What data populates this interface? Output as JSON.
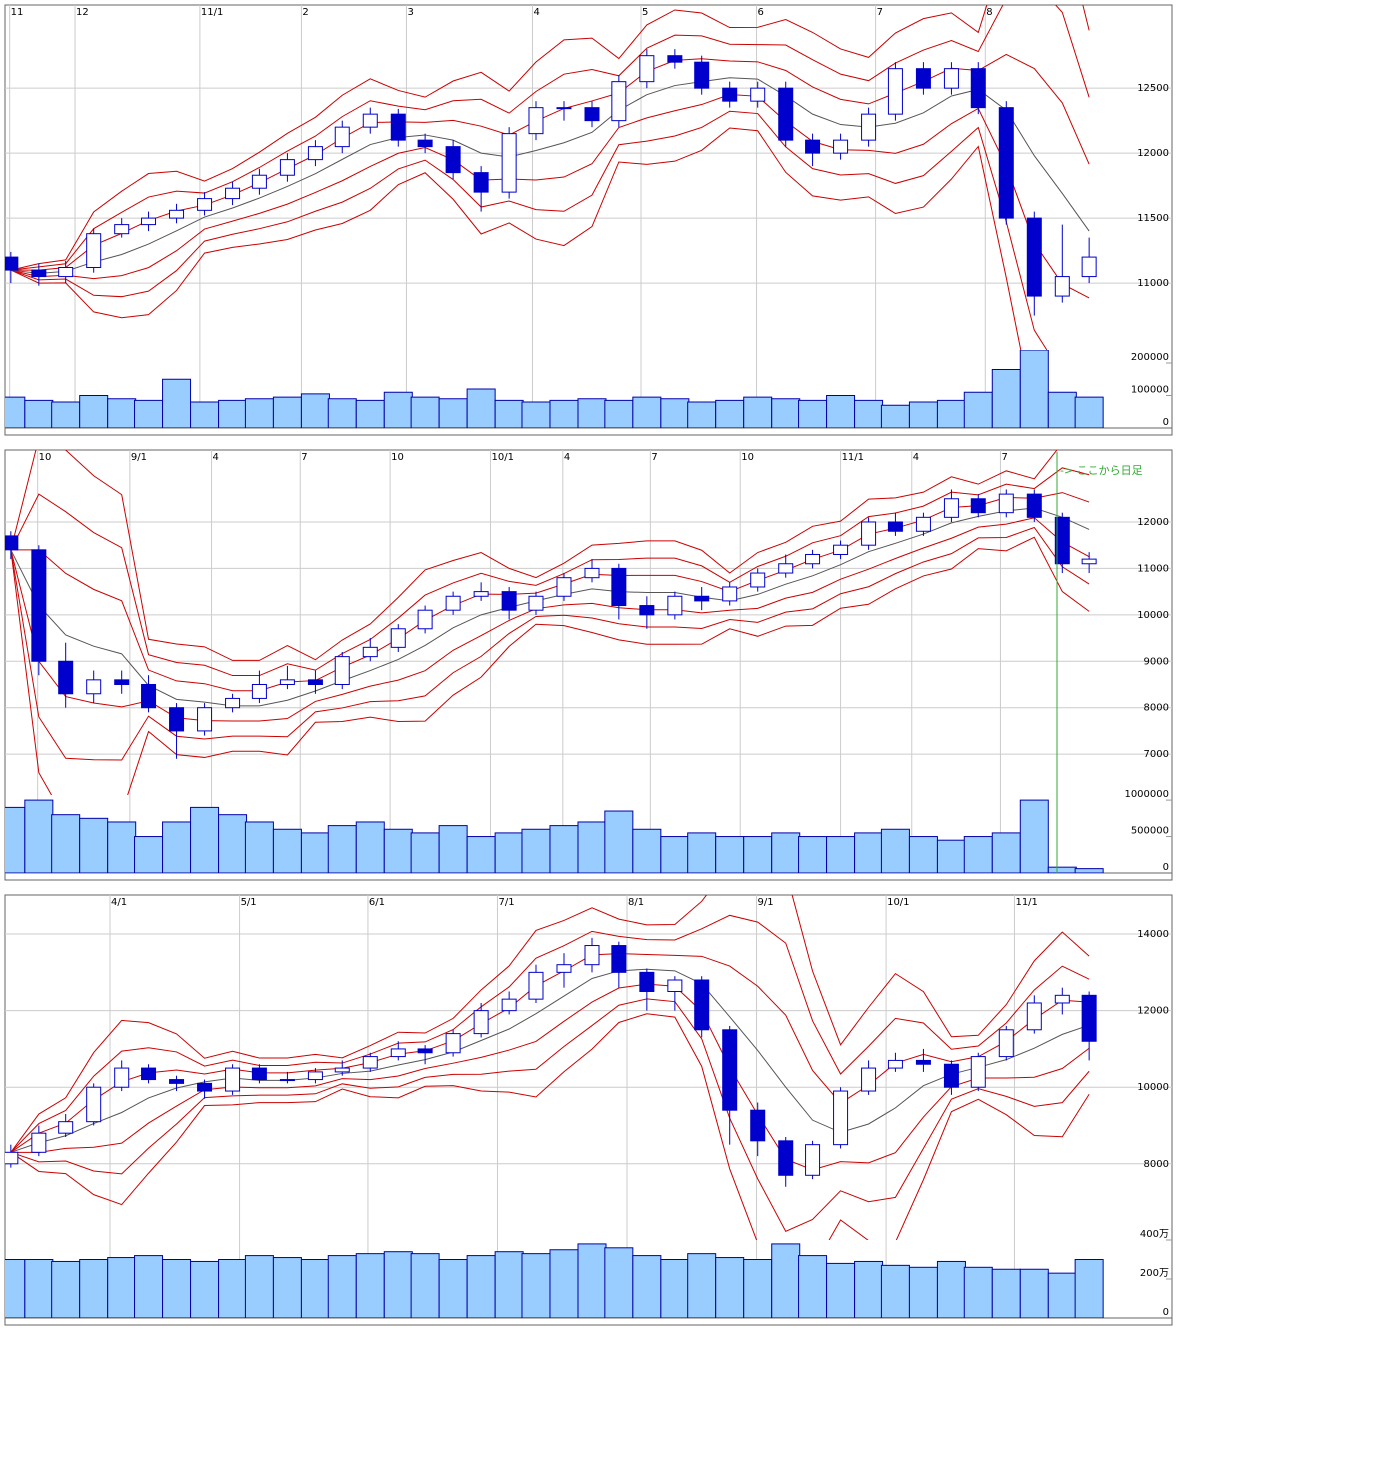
{
  "chart_data": [
    {
      "type": "candlestick",
      "x": [
        0.5,
        2.9,
        5.2,
        7.6,
        10.0,
        12.3,
        14.7,
        17.1,
        19.5,
        21.8,
        24.2,
        26.6,
        28.9,
        31.3,
        33.7,
        36.0,
        38.4,
        40.8,
        43.2,
        45.5,
        47.9,
        50.3,
        52.6,
        55.0,
        57.4,
        59.7,
        62.1,
        64.5,
        66.9,
        69.2,
        71.6,
        74.0,
        76.3,
        78.7,
        81.1,
        83.4,
        85.8,
        88.2,
        90.6,
        92.9
      ],
      "open": [
        11200,
        11100,
        11050,
        11120,
        11380,
        11450,
        11500,
        11560,
        11650,
        11730,
        11830,
        11950,
        12050,
        12200,
        12300,
        12100,
        12050,
        11850,
        11700,
        12150,
        12350,
        12350,
        12250,
        12550,
        12750,
        12700,
        12500,
        12400,
        12500,
        12100,
        12000,
        12100,
        12300,
        12650,
        12500,
        12650,
        12350,
        11500,
        10900,
        11050
      ],
      "high": [
        11240,
        11150,
        11170,
        11420,
        11500,
        11550,
        11610,
        11700,
        11780,
        11880,
        12000,
        12100,
        12250,
        12350,
        12340,
        12150,
        12100,
        11900,
        12200,
        12400,
        12400,
        12400,
        12600,
        12800,
        12800,
        12750,
        12550,
        12550,
        12550,
        12150,
        12150,
        12350,
        12700,
        12700,
        12700,
        12700,
        12400,
        11550,
        11450,
        11350
      ],
      "low": [
        11000,
        10980,
        11000,
        11080,
        11350,
        11400,
        11460,
        11520,
        11600,
        11680,
        11780,
        11900,
        12000,
        12150,
        12050,
        12000,
        11800,
        11550,
        11650,
        12100,
        12250,
        12200,
        12200,
        12500,
        12650,
        12450,
        12350,
        12350,
        12050,
        11900,
        11950,
        12050,
        12250,
        12450,
        12450,
        12300,
        11450,
        10750,
        10850,
        11000
      ],
      "close": [
        11100,
        11050,
        11120,
        11380,
        11450,
        11500,
        11560,
        11650,
        11730,
        11830,
        11950,
        12050,
        12200,
        12300,
        12100,
        12050,
        11850,
        11700,
        12150,
        12350,
        12350,
        12250,
        12550,
        12750,
        12700,
        12500,
        12400,
        12500,
        12100,
        12000,
        12100,
        12300,
        12650,
        12500,
        12650,
        12350,
        11500,
        10900,
        11050,
        11200
      ],
      "volume": [
        95000,
        85000,
        80000,
        100000,
        90000,
        85000,
        150000,
        80000,
        85000,
        90000,
        95000,
        105000,
        90000,
        85000,
        110000,
        95000,
        90000,
        120000,
        85000,
        80000,
        85000,
        90000,
        85000,
        95000,
        90000,
        80000,
        85000,
        95000,
        90000,
        85000,
        100000,
        85000,
        70000,
        80000,
        85000,
        110000,
        180000,
        240000,
        110000,
        95000
      ],
      "xlim": [
        0,
        100
      ],
      "xticks": [
        {
          "value": 0.4,
          "label": "11"
        },
        {
          "value": 6.0,
          "label": "12"
        },
        {
          "value": 16.7,
          "label": "11/1"
        },
        {
          "value": 25.4,
          "label": "2"
        },
        {
          "value": 34.4,
          "label": "3"
        },
        {
          "value": 45.2,
          "label": "4"
        },
        {
          "value": 54.5,
          "label": "5"
        },
        {
          "value": 64.4,
          "label": "6"
        },
        {
          "value": 74.6,
          "label": "7"
        },
        {
          "value": 84.0,
          "label": "8"
        }
      ],
      "ylim": [
        10485,
        13140
      ],
      "yticks": [
        11000,
        11500,
        12000,
        12500
      ],
      "volume_ylim": [
        0,
        240000
      ],
      "volume_yticks": [
        0,
        100000,
        200000
      ],
      "up_color": "#ffffff",
      "down_color": "#0000cc",
      "volume_color": "#99ccff",
      "band_color": "#cc0000",
      "grid": true
    },
    {
      "type": "candlestick",
      "x": [
        0.5,
        2.9,
        5.2,
        7.6,
        10.0,
        12.3,
        14.7,
        17.1,
        19.5,
        21.8,
        24.2,
        26.6,
        28.9,
        31.3,
        33.7,
        36.0,
        38.4,
        40.8,
        43.2,
        45.5,
        47.9,
        50.3,
        52.6,
        55.0,
        57.4,
        59.7,
        62.1,
        64.5,
        66.9,
        69.2,
        71.6,
        74.0,
        76.3,
        78.7,
        81.1,
        83.4,
        85.8,
        88.2,
        90.6,
        92.9
      ],
      "open": [
        11700,
        11400,
        9000,
        8300,
        8600,
        8500,
        8000,
        7500,
        8000,
        8200,
        8500,
        8600,
        8500,
        9100,
        9300,
        9700,
        10100,
        10400,
        10500,
        10100,
        10400,
        10800,
        11000,
        10200,
        10000,
        10400,
        10300,
        10600,
        10900,
        11100,
        11300,
        11500,
        12000,
        11800,
        12100,
        12500,
        12200,
        12600,
        12100,
        11100
      ],
      "high": [
        11800,
        11500,
        9400,
        8800,
        8800,
        8700,
        8100,
        8100,
        8300,
        8800,
        8900,
        8800,
        9200,
        9500,
        9800,
        10200,
        10500,
        10700,
        10600,
        10500,
        10900,
        11200,
        11100,
        10400,
        10500,
        10600,
        10700,
        11000,
        11300,
        11400,
        11600,
        12100,
        12200,
        12200,
        12700,
        12600,
        12700,
        12700,
        12200,
        11350
      ],
      "low": [
        11200,
        8700,
        8000,
        8100,
        8300,
        7900,
        6900,
        7400,
        7900,
        8100,
        8400,
        8300,
        8400,
        9000,
        9200,
        9600,
        10000,
        10300,
        9900,
        10000,
        10300,
        10700,
        9900,
        9700,
        9900,
        10100,
        10200,
        10500,
        10800,
        11000,
        11200,
        11400,
        11700,
        11700,
        12000,
        12100,
        12100,
        12000,
        10900,
        10900
      ],
      "close": [
        11400,
        9000,
        8300,
        8600,
        8500,
        8000,
        7500,
        8000,
        8200,
        8500,
        8600,
        8500,
        9100,
        9300,
        9700,
        10100,
        10400,
        10500,
        10100,
        10400,
        10800,
        11000,
        10200,
        10000,
        10400,
        10300,
        10600,
        10900,
        11100,
        11300,
        11500,
        12000,
        11800,
        12100,
        12500,
        12200,
        12600,
        12100,
        11100,
        11200
      ],
      "volume": [
        900000,
        1000000,
        800000,
        750000,
        700000,
        500000,
        700000,
        900000,
        800000,
        700000,
        600000,
        550000,
        650000,
        700000,
        600000,
        550000,
        650000,
        500000,
        550000,
        600000,
        650000,
        700000,
        850000,
        600000,
        500000,
        550000,
        500000,
        500000,
        550000,
        500000,
        500000,
        550000,
        600000,
        500000,
        450000,
        500000,
        550000,
        1000000,
        80000,
        60000
      ],
      "xlim": [
        0,
        100
      ],
      "xticks": [
        {
          "value": 2.8,
          "label": "10"
        },
        {
          "value": 10.7,
          "label": "9/1"
        },
        {
          "value": 17.7,
          "label": "4"
        },
        {
          "value": 25.3,
          "label": "7"
        },
        {
          "value": 33.0,
          "label": "10"
        },
        {
          "value": 41.6,
          "label": "10/1"
        },
        {
          "value": 47.8,
          "label": "4"
        },
        {
          "value": 55.3,
          "label": "7"
        },
        {
          "value": 63.0,
          "label": "10"
        },
        {
          "value": 71.6,
          "label": "11/1"
        },
        {
          "value": 77.7,
          "label": "4"
        },
        {
          "value": 85.3,
          "label": "7"
        }
      ],
      "ylim": [
        6120,
        13550
      ],
      "yticks": [
        7000,
        8000,
        9000,
        10000,
        11000,
        12000
      ],
      "volume_ylim": [
        0,
        1070000
      ],
      "volume_yticks": [
        0,
        500000,
        1000000
      ],
      "annotation": "-> ここから日足",
      "up_color": "#ffffff",
      "down_color": "#0000cc",
      "volume_color": "#99ccff",
      "band_color": "#cc0000",
      "grid": true
    },
    {
      "type": "candlestick",
      "x": [
        0.5,
        2.9,
        5.2,
        7.6,
        10.0,
        12.3,
        14.7,
        17.1,
        19.5,
        21.8,
        24.2,
        26.6,
        28.9,
        31.3,
        33.7,
        36.0,
        38.4,
        40.8,
        43.2,
        45.5,
        47.9,
        50.3,
        52.6,
        55.0,
        57.4,
        59.7,
        62.1,
        64.5,
        66.9,
        69.2,
        71.6,
        74.0,
        76.3,
        78.7,
        81.1,
        83.4,
        85.8,
        88.2,
        90.6,
        92.9
      ],
      "open": [
        8000,
        8300,
        8800,
        9100,
        10000,
        10500,
        10200,
        10100,
        9900,
        10500,
        10200,
        10200,
        10400,
        10500,
        10800,
        11000,
        10900,
        11400,
        12000,
        12300,
        13000,
        13200,
        13700,
        13000,
        12500,
        12800,
        11500,
        9400,
        8600,
        7700,
        8500,
        9900,
        10500,
        10700,
        10600,
        10000,
        10800,
        11500,
        12200,
        12400
      ],
      "high": [
        8500,
        9000,
        9300,
        10100,
        10700,
        10600,
        10300,
        10200,
        10600,
        10600,
        10400,
        10500,
        10700,
        10900,
        11200,
        11100,
        11500,
        12200,
        12500,
        13200,
        13500,
        13900,
        13800,
        13100,
        12900,
        12900,
        11600,
        9600,
        8700,
        8600,
        10000,
        10700,
        10900,
        11000,
        10700,
        10900,
        11600,
        12400,
        12600,
        12500
      ],
      "low": [
        7900,
        8200,
        8700,
        9000,
        9900,
        10100,
        9900,
        9700,
        9800,
        10100,
        10100,
        10100,
        10300,
        10400,
        10700,
        10600,
        10800,
        11300,
        11900,
        12200,
        12600,
        13000,
        12600,
        12000,
        12000,
        11300,
        8500,
        8200,
        7400,
        7600,
        8400,
        9800,
        10400,
        10400,
        9800,
        9900,
        10700,
        11400,
        11900,
        10700
      ],
      "close": [
        8300,
        8800,
        9100,
        10000,
        10500,
        10200,
        10100,
        9900,
        10500,
        10200,
        10200,
        10400,
        10500,
        10800,
        11000,
        10900,
        11400,
        12000,
        12300,
        13000,
        13200,
        13700,
        13000,
        12500,
        12800,
        11500,
        9400,
        8600,
        7700,
        8500,
        9900,
        10500,
        10700,
        10600,
        10000,
        10800,
        11500,
        12200,
        12400,
        11200
      ],
      "volume": [
        3000000,
        3000000,
        2900000,
        3000000,
        3100000,
        3200000,
        3000000,
        2900000,
        3000000,
        3200000,
        3100000,
        3000000,
        3200000,
        3300000,
        3400000,
        3300000,
        3000000,
        3200000,
        3400000,
        3300000,
        3500000,
        3800000,
        3600000,
        3200000,
        3000000,
        3300000,
        3100000,
        3000000,
        3800000,
        3200000,
        2800000,
        2900000,
        2700000,
        2600000,
        2900000,
        2600000,
        2500000,
        2500000,
        2300000,
        3000000
      ],
      "xlim": [
        0,
        100
      ],
      "xticks": [
        {
          "value": 9.0,
          "label": "4/1"
        },
        {
          "value": 20.1,
          "label": "5/1"
        },
        {
          "value": 31.1,
          "label": "6/1"
        },
        {
          "value": 42.2,
          "label": "7/1"
        },
        {
          "value": 53.3,
          "label": "8/1"
        },
        {
          "value": 64.4,
          "label": "9/1"
        },
        {
          "value": 75.5,
          "label": "10/1"
        },
        {
          "value": 86.5,
          "label": "11/1"
        }
      ],
      "ylim": [
        6010,
        15020
      ],
      "yticks": [
        8000,
        10000,
        12000,
        14000
      ],
      "volume_ylim": [
        0,
        4000000
      ],
      "volume_yticks": [
        0,
        {
          "value": 2000000,
          "label": "200万"
        },
        {
          "value": 4000000,
          "label": "400万"
        }
      ],
      "up_color": "#ffffff",
      "down_color": "#0000cc",
      "volume_color": "#99ccff",
      "band_color": "#cc0000",
      "grid": true
    }
  ]
}
